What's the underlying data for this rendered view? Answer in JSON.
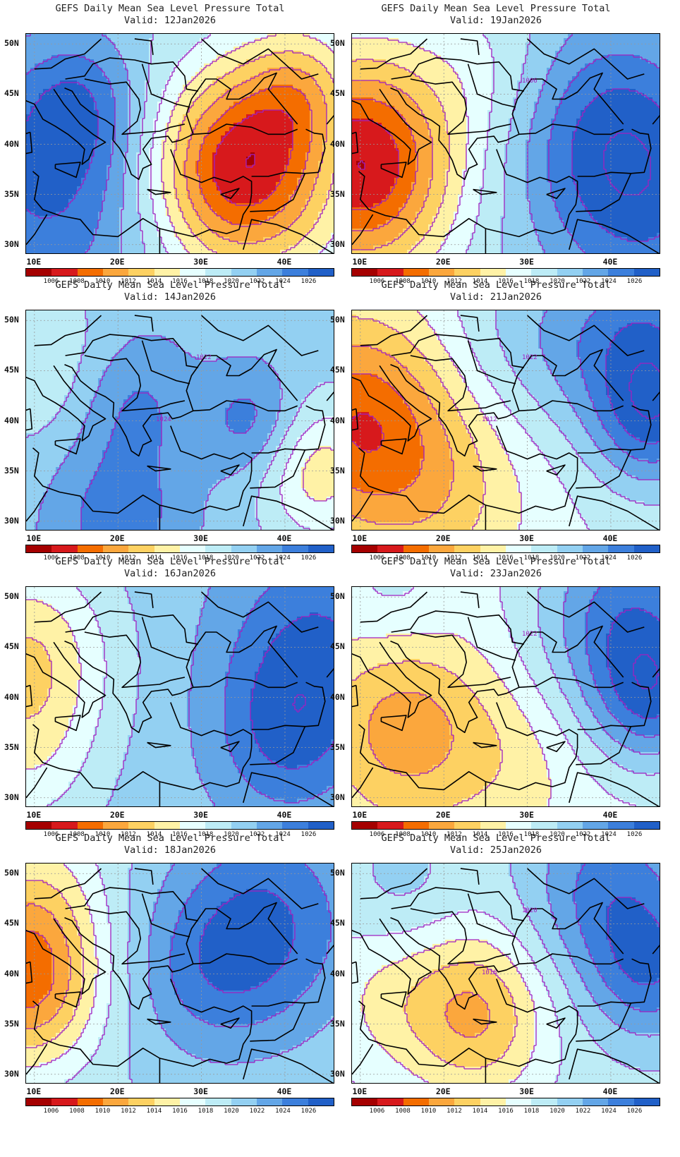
{
  "title_line": "GEFS Daily Mean Sea Level Pressure Total",
  "valid_prefix": "Valid:",
  "panels": [
    {
      "date": "12Jan2026",
      "labels": []
    },
    {
      "date": "19Jan2026",
      "labels": [
        "1006"
      ]
    },
    {
      "date": "14Jan2026",
      "labels": [
        "1022",
        "1024"
      ]
    },
    {
      "date": "21Jan2026",
      "labels": [
        "1022",
        "1012"
      ]
    },
    {
      "date": "16Jan2026",
      "labels": []
    },
    {
      "date": "23Jan2026",
      "labels": [
        "1022"
      ]
    },
    {
      "date": "18Jan2026",
      "labels": []
    },
    {
      "date": "25Jan2026",
      "labels": [
        "1020",
        "1018"
      ]
    }
  ],
  "y_ticks": [
    "50N",
    "45N",
    "40N",
    "35N",
    "30N"
  ],
  "x_ticks": [
    "10E",
    "20E",
    "30E",
    "40E"
  ],
  "colorbar_labels": [
    "1006",
    "1008",
    "1010",
    "1012",
    "1014",
    "1016",
    "1018",
    "1020",
    "1022",
    "1024",
    "1026"
  ],
  "colors": {
    "scale": [
      "#a50000",
      "#d7191c",
      "#f46d00",
      "#fba73d",
      "#fdd162",
      "#fff2a6",
      "#e6ffff",
      "#bdecf6",
      "#93d0f2",
      "#63a6e7",
      "#3c7fdc",
      "#2160c8"
    ],
    "contour": "#a020c0"
  }
}
